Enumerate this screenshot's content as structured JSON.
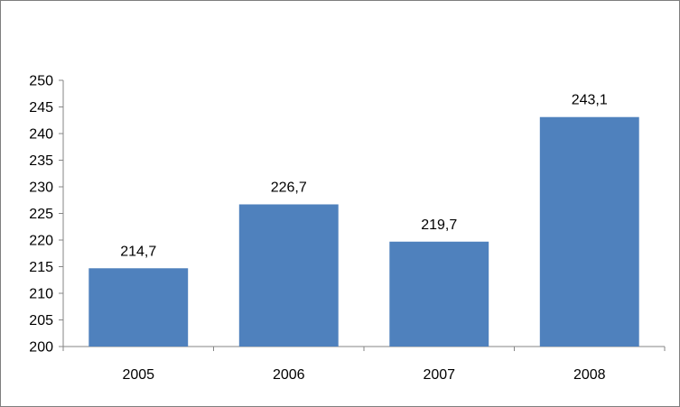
{
  "chart_data": {
    "type": "bar",
    "categories": [
      "2005",
      "2006",
      "2007",
      "2008"
    ],
    "values": [
      214.7,
      226.7,
      219.7,
      243.1
    ],
    "data_labels": [
      "214,7",
      "226,7",
      "219,7",
      "243,1"
    ],
    "yticks": [
      "200",
      "205",
      "210",
      "215",
      "220",
      "225",
      "230",
      "235",
      "240",
      "245",
      "250"
    ],
    "ylim": [
      200,
      250
    ],
    "ytick_step": 5,
    "title": "",
    "xlabel": "",
    "ylabel": "",
    "bar_color": "#4f81bd",
    "grid": false,
    "legend": "none"
  }
}
